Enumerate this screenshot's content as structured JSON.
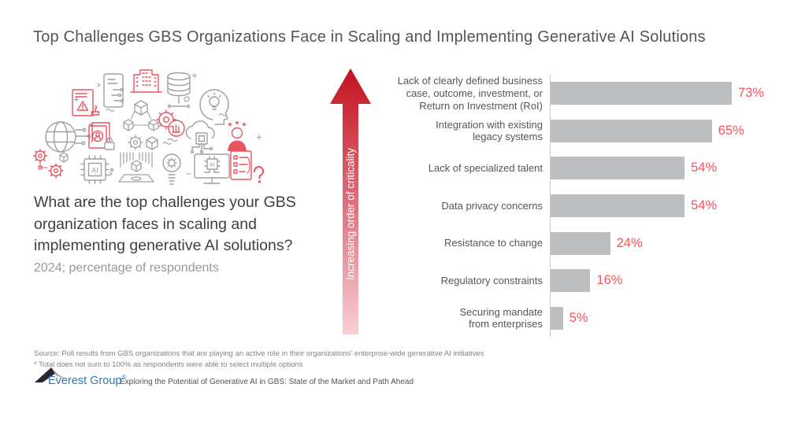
{
  "title": "Top Challenges GBS Organizations Face in Scaling and Implementing Generative AI Solutions",
  "question": {
    "text": "What are the top challenges your GBS\norganization faces in scaling and\nimplementing generative AI solutions?",
    "subtitle": "2024; percentage of respondents"
  },
  "arrow": {
    "label": "Increasing order of criticality",
    "color_top": "#c3111f",
    "color_bottom": "#f8ced5"
  },
  "chart_data": {
    "type": "bar",
    "orientation": "horizontal",
    "categories": [
      "Lack of clearly defined business\ncase, outcome, investment, or\nReturn on Investment (RoI)",
      "Integration with existing\nlegacy systems",
      "Lack of specialized talent",
      "Data privacy concerns",
      "Resistance to change",
      "Regulatory constraints",
      "Securing mandate\nfrom enterprises"
    ],
    "values": [
      73,
      65,
      54,
      54,
      24,
      16,
      5
    ],
    "value_labels": [
      "73%",
      "65%",
      "54%",
      "54%",
      "24%",
      "16%",
      "5%"
    ],
    "xlim": [
      0,
      100
    ],
    "unit": "percentage of respondents",
    "bar_color": "#bcbec0",
    "value_label_color": "#f4555d",
    "sorted": "descending top to bottom",
    "axis_note": "no x-axis ticks or gridlines; single vertical baseline"
  },
  "illustration": {
    "ai_label": "AI"
  },
  "footer": {
    "source_line1": "Source: Poll results from GBS organizations that are playing an active role in their organizations' enterprise-wide generative AI initiatives",
    "source_line2": "* Total does not sum to 100% as respondents were able to select multiple options",
    "logo_text": "Everest Group",
    "logo_reg": "®",
    "report_title": "Exploring the Potential of Generative AI in GBS: State of the Market and Path Ahead"
  }
}
